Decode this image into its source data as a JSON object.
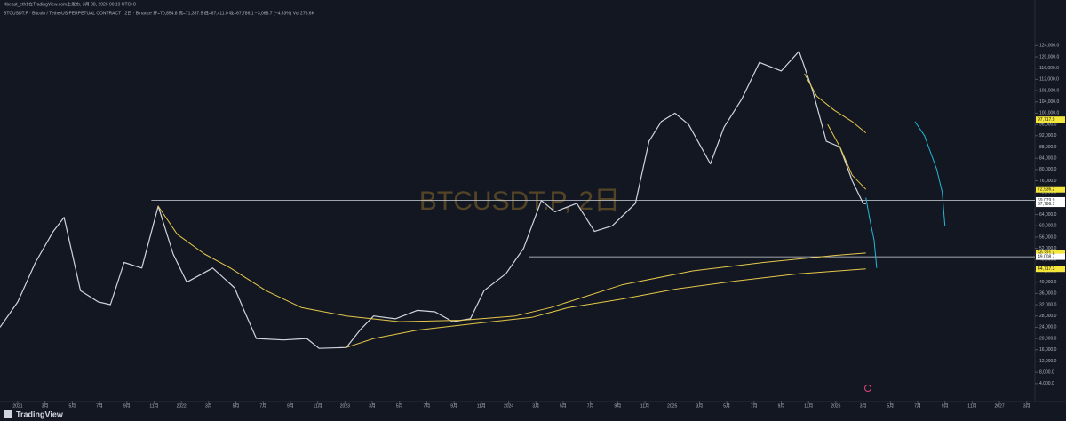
{
  "header": {
    "author_line": "Xbeast_eth1在TradingView.com上发布, 3月 08, 2026 00:19 UTC+8",
    "symbol_line": "BTCUSDT.P · Bitcoin / TetherUS PERPETUAL CONTRACT · 2日 · Binance  开=70,854.8  高=71,387.5  低=67,411.0  收=67,786.1  −3,068.7 (−4.33%)  Vol 276.6K"
  },
  "footer": {
    "brand": "TradingView"
  },
  "chart_data": {
    "type": "line",
    "watermark": "BTCUSDT.P, 2日",
    "xlim": [
      -1.3,
      74.6
    ],
    "ylim": [
      -1100,
      136400
    ],
    "xticks": [
      {
        "value": 0,
        "label": "2021"
      },
      {
        "value": 2,
        "label": "3月"
      },
      {
        "value": 4,
        "label": "5月"
      },
      {
        "value": 6,
        "label": "7月"
      },
      {
        "value": 8,
        "label": "9月"
      },
      {
        "value": 10,
        "label": "11月"
      },
      {
        "value": 12,
        "label": "2022"
      },
      {
        "value": 14,
        "label": "3月"
      },
      {
        "value": 16,
        "label": "5月"
      },
      {
        "value": 18,
        "label": "7月"
      },
      {
        "value": 20,
        "label": "9月"
      },
      {
        "value": 22,
        "label": "11月"
      },
      {
        "value": 24,
        "label": "2023"
      },
      {
        "value": 26,
        "label": "3月"
      },
      {
        "value": 28,
        "label": "5月"
      },
      {
        "value": 30,
        "label": "7月"
      },
      {
        "value": 32,
        "label": "9月"
      },
      {
        "value": 34,
        "label": "11月"
      },
      {
        "value": 36,
        "label": "2024"
      },
      {
        "value": 38,
        "label": "3月"
      },
      {
        "value": 40,
        "label": "5月"
      },
      {
        "value": 42,
        "label": "7月"
      },
      {
        "value": 44,
        "label": "9月"
      },
      {
        "value": 46,
        "label": "11月"
      },
      {
        "value": 48,
        "label": "2025"
      },
      {
        "value": 50,
        "label": "3月"
      },
      {
        "value": 52,
        "label": "5月"
      },
      {
        "value": 54,
        "label": "7月"
      },
      {
        "value": 56,
        "label": "9月"
      },
      {
        "value": 58,
        "label": "11月"
      },
      {
        "value": 60,
        "label": "2026"
      },
      {
        "value": 62,
        "label": "3月"
      },
      {
        "value": 64,
        "label": "5月"
      },
      {
        "value": 66,
        "label": "7月"
      },
      {
        "value": 68,
        "label": "9月"
      },
      {
        "value": 70,
        "label": "11月"
      },
      {
        "value": 72,
        "label": "2027"
      },
      {
        "value": 74,
        "label": "3月"
      }
    ],
    "yticks": [
      {
        "value": 4000,
        "label": "4,000.0"
      },
      {
        "value": 8000,
        "label": "8,000.0"
      },
      {
        "value": 12000,
        "label": "12,000.0"
      },
      {
        "value": 16000,
        "label": "16,000.0"
      },
      {
        "value": 20000,
        "label": "20,000.0"
      },
      {
        "value": 24000,
        "label": "24,000.0"
      },
      {
        "value": 28000,
        "label": "28,000.0"
      },
      {
        "value": 32000,
        "label": "32,000.0"
      },
      {
        "value": 36000,
        "label": "36,000.0"
      },
      {
        "value": 40000,
        "label": "40,000.0"
      },
      {
        "value": 44000,
        "label": "44,000.0"
      },
      {
        "value": 48000,
        "label": "48,000.0"
      },
      {
        "value": 52000,
        "label": "52,000.0"
      },
      {
        "value": 56000,
        "label": "56,000.0"
      },
      {
        "value": 60000,
        "label": "60,000.0"
      },
      {
        "value": 64000,
        "label": "64,000.0"
      },
      {
        "value": 68000,
        "label": "68,000.0"
      },
      {
        "value": 72000,
        "label": "72,000.0"
      },
      {
        "value": 76000,
        "label": "76,000.0"
      },
      {
        "value": 80000,
        "label": "80,000.0"
      },
      {
        "value": 84000,
        "label": "84,000.0"
      },
      {
        "value": 88000,
        "label": "88,000.0"
      },
      {
        "value": 92000,
        "label": "92,000.0"
      },
      {
        "value": 96000,
        "label": "96,000.0"
      },
      {
        "value": 100000,
        "label": "100,000.0"
      },
      {
        "value": 104000,
        "label": "104,000.0"
      },
      {
        "value": 108000,
        "label": "108,000.0"
      },
      {
        "value": 112000,
        "label": "112,000.0"
      },
      {
        "value": 116000,
        "label": "116,000.0"
      },
      {
        "value": 120000,
        "label": "120,000.0"
      },
      {
        "value": 124000,
        "label": "124,000.0"
      }
    ],
    "series": [
      {
        "color": "#d1d4dc",
        "x": [
          -1.3,
          0,
          1.3,
          2.6,
          3.4,
          4.6,
          5.9,
          6.8,
          7.8,
          9.1,
          10.3,
          11.4,
          12.4,
          14.3,
          15.9,
          16.6,
          17.5,
          19.5,
          21.2,
          22.1,
          24.1,
          25.1,
          26.1,
          27.7,
          29.3,
          30.6,
          31.9,
          33.2,
          34.2,
          35.8,
          37.1,
          38.4,
          39.4,
          41,
          42.3,
          43.6,
          45.3,
          46.3,
          47.2,
          48.2,
          49.2,
          50.8,
          51.8,
          53.1,
          54.4,
          56,
          57.3,
          58.3,
          59.3,
          60.3,
          61.2,
          62,
          62.2
        ],
        "values": [
          24000,
          33000,
          47000,
          58000,
          63000,
          37000,
          33000,
          32000,
          47000,
          45000,
          67000,
          50000,
          40000,
          45000,
          38000,
          30000,
          20000,
          19500,
          20000,
          16500,
          16800,
          23000,
          28000,
          27000,
          30000,
          29500,
          26000,
          27000,
          37000,
          43000,
          52000,
          69000,
          65000,
          68000,
          58000,
          60000,
          68000,
          90000,
          97000,
          100000,
          96000,
          82000,
          95000,
          105000,
          118000,
          115000,
          122000,
          108000,
          90000,
          88000,
          76000,
          68000,
          67786.1
        ]
      },
      {
        "color": "#22b8d6",
        "x": [
          62.2,
          62.5,
          62.8,
          63.0
        ],
        "values": [
          70000,
          62000,
          55000,
          45000
        ]
      },
      {
        "color": "#22b8d6",
        "x": [
          65.8,
          66.5,
          66.8,
          67.4,
          67.8,
          68.0
        ],
        "values": [
          97000,
          92000,
          88000,
          80000,
          72000,
          60000
        ]
      },
      {
        "color": "#e5c84a",
        "x": [
          10.3,
          11.7,
          13.7,
          15.6,
          18.2,
          20.8,
          24.1,
          28,
          32.6,
          36.5,
          39.1,
          44.3,
          49.5,
          54.7,
          59.9,
          62.2
        ],
        "values": [
          67000,
          57000,
          50000,
          45000,
          37000,
          31000,
          28000,
          26000,
          26500,
          28000,
          31000,
          39000,
          44000,
          47000,
          49500,
          50321.4
        ]
      },
      {
        "color": "#e5c84a",
        "x": [
          24.1,
          26.1,
          29.3,
          33.8,
          37.7,
          40.4,
          44.3,
          48.2,
          52.8,
          57.3,
          62.2
        ],
        "values": [
          16800,
          20000,
          23000,
          25500,
          27500,
          31000,
          34000,
          37500,
          40500,
          43000,
          44717.3
        ]
      },
      {
        "color": "#e5c84a",
        "x": [
          57.7,
          58.6,
          59.9,
          61.2,
          62.2
        ],
        "values": [
          114000,
          106000,
          101000,
          97000,
          93000
        ]
      },
      {
        "color": "#e5c84a",
        "x": [
          59.4,
          60.3,
          61.2,
          62.2
        ],
        "values": [
          96000,
          88000,
          78000,
          72936.2
        ]
      }
    ],
    "hlines": [
      {
        "value": 69079.9,
        "start": 9.8,
        "color": "#d1d4dc"
      },
      {
        "value": 49008.7,
        "start": 37.5,
        "color": "#d1d4dc"
      }
    ],
    "levels": [
      {
        "value": 97717.9,
        "label": "97,717.9",
        "color": "#f5e63b"
      },
      {
        "value": 72936.2,
        "label": "72,936.2",
        "color": "#f5e63b"
      },
      {
        "value": 69079.9,
        "label": "69,079.9",
        "color": "#ffffff"
      },
      {
        "value": 67786.1,
        "label": "67,786.1",
        "color": "#ffffff"
      },
      {
        "value": 50321.4,
        "label": "50,321.4",
        "color": "#f5e63b"
      },
      {
        "value": 49008.7,
        "label": "49,008.7",
        "color": "#ffffff"
      },
      {
        "value": 44717.3,
        "label": "44,717.3",
        "color": "#f5e63b"
      }
    ]
  }
}
